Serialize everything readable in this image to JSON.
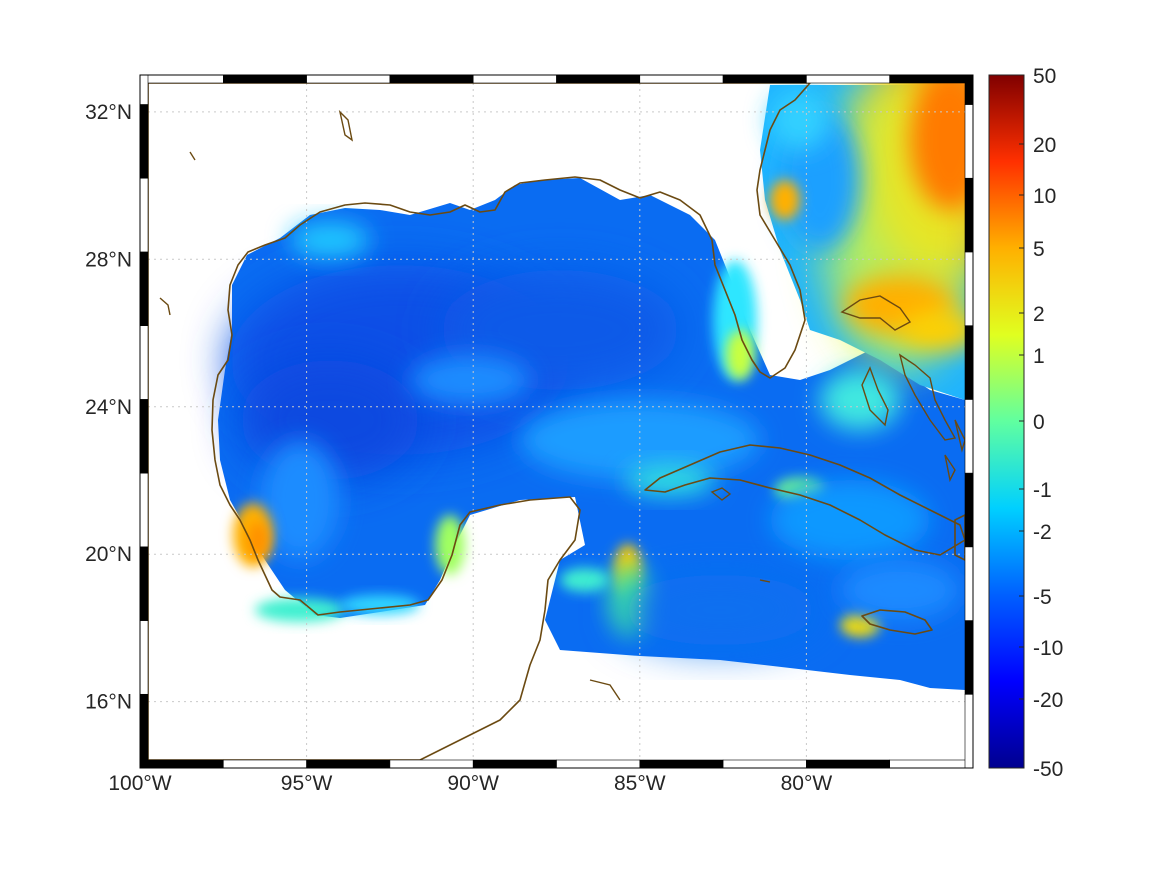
{
  "map": {
    "lon_range": [
      -100,
      -75
    ],
    "lat_range": [
      14.2,
      33
    ],
    "lon_ticks": [
      {
        "value": -100,
        "label": "100°W"
      },
      {
        "value": -95,
        "label": "95°W"
      },
      {
        "value": -90,
        "label": "90°W"
      },
      {
        "value": -85,
        "label": "85°W"
      },
      {
        "value": -80,
        "label": "80°W"
      }
    ],
    "lat_ticks": [
      {
        "value": 32,
        "label": "32°N"
      },
      {
        "value": 28,
        "label": "28°N"
      },
      {
        "value": 24,
        "label": "24°N"
      },
      {
        "value": 20,
        "label": "20°N"
      },
      {
        "value": 16,
        "label": "16°N"
      }
    ],
    "grid": true,
    "frame": "black-and-white checkered",
    "coastline_color": "#6b4a12",
    "land_color": "#ffffff"
  },
  "colorbar": {
    "placement": "right",
    "colormap": "jet",
    "ticks": [
      {
        "value": 50,
        "label": "50"
      },
      {
        "value": 20,
        "label": "20"
      },
      {
        "value": 10,
        "label": "10"
      },
      {
        "value": 5,
        "label": "5"
      },
      {
        "value": 2,
        "label": "2"
      },
      {
        "value": 1,
        "label": "1"
      },
      {
        "value": 0,
        "label": "0"
      },
      {
        "value": -1,
        "label": "-1"
      },
      {
        "value": -2,
        "label": "-2"
      },
      {
        "value": -5,
        "label": "-5"
      },
      {
        "value": -10,
        "label": "-10"
      },
      {
        "value": -20,
        "label": "-20"
      },
      {
        "value": -50,
        "label": "-50"
      }
    ],
    "colors": [
      "#00008f",
      "#0000ff",
      "#0080ff",
      "#00ffff",
      "#80ff80",
      "#ffff00",
      "#ff8000",
      "#ff0000",
      "#800000"
    ]
  },
  "field_description": [
    {
      "region": "Gulf of Mexico interior",
      "value": -5
    },
    {
      "region": "Atlantic northeast of Bahamas",
      "value": 10
    },
    {
      "region": "Bay of Campeche coast",
      "value": 3
    },
    {
      "region": "Caribbean near 85°W 20°N",
      "value": 3
    }
  ]
}
